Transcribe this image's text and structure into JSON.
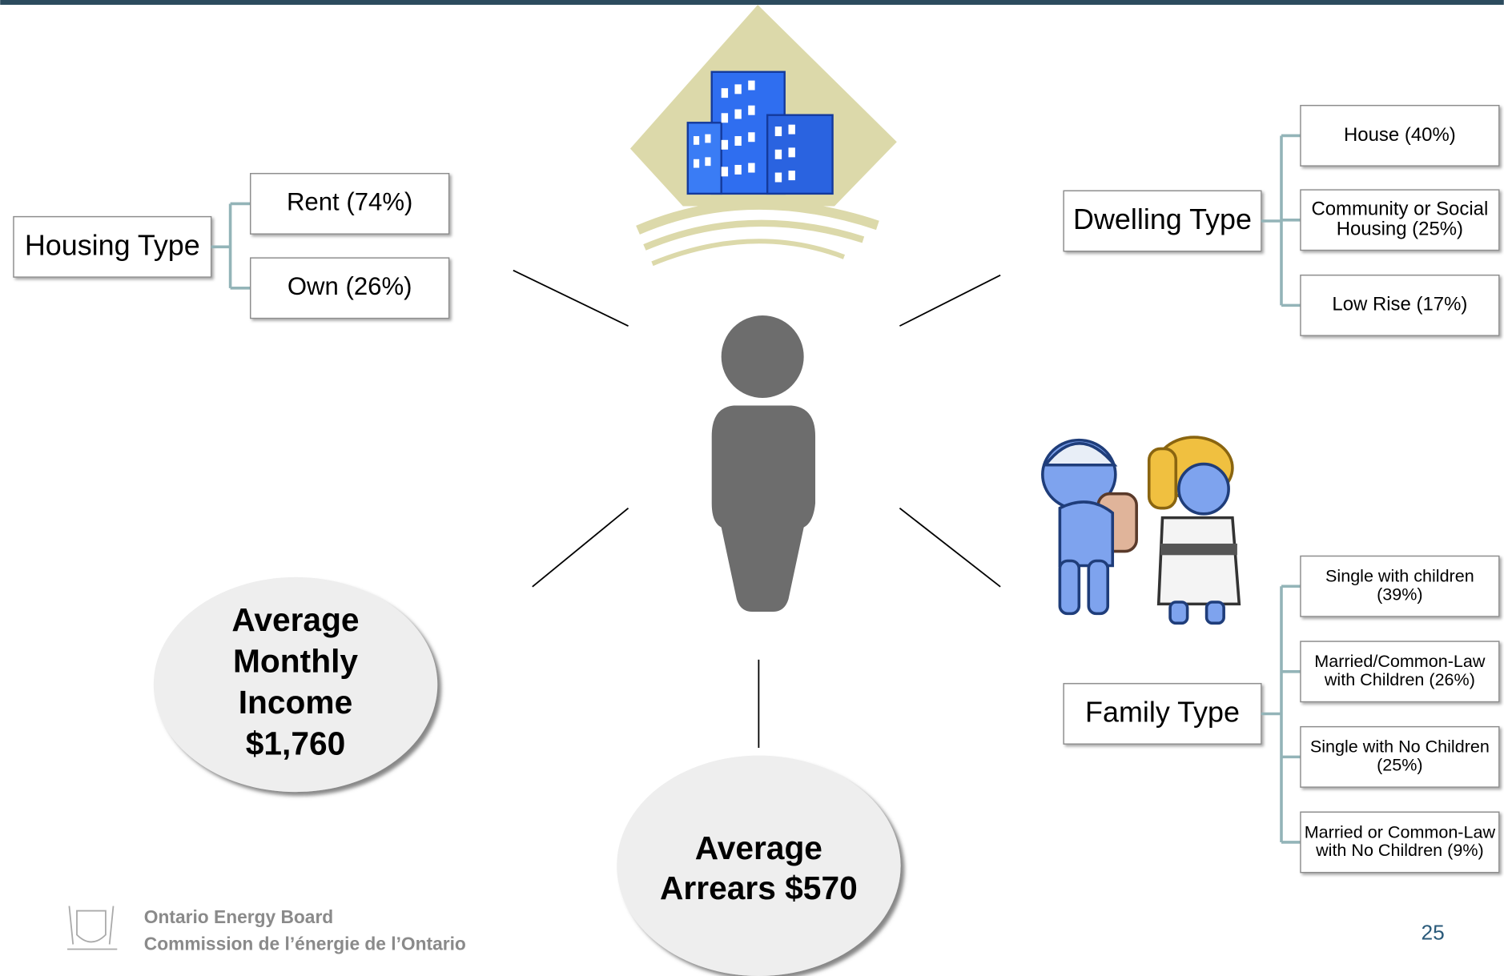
{
  "housing_type": {
    "label": "Housing Type",
    "items": [
      [
        "Rent (74%)"
      ],
      [
        "Own (26%)"
      ]
    ]
  },
  "dwelling_type": {
    "label": "Dwelling Type",
    "items": [
      [
        "House (40%)"
      ],
      [
        "Community or Social",
        "Housing (25%)"
      ],
      [
        "Low Rise (17%)"
      ]
    ]
  },
  "family_type": {
    "label": "Family Type",
    "items": [
      [
        "Single with children",
        "(39%)"
      ],
      [
        "Married/Common-Law",
        "with Children (26%)"
      ],
      [
        "Single with No Children",
        "(25%)"
      ],
      [
        "Married or Common-Law",
        "with No Children (9%)"
      ]
    ]
  },
  "income": [
    "Average",
    "Monthly",
    "Income",
    "$1,760"
  ],
  "arrears": [
    "Average",
    "Arrears $570"
  ],
  "footer": {
    "org_en": "Ontario Energy Board",
    "org_fr": "Commission de l’énergie de l’Ontario",
    "page_number": "25"
  }
}
